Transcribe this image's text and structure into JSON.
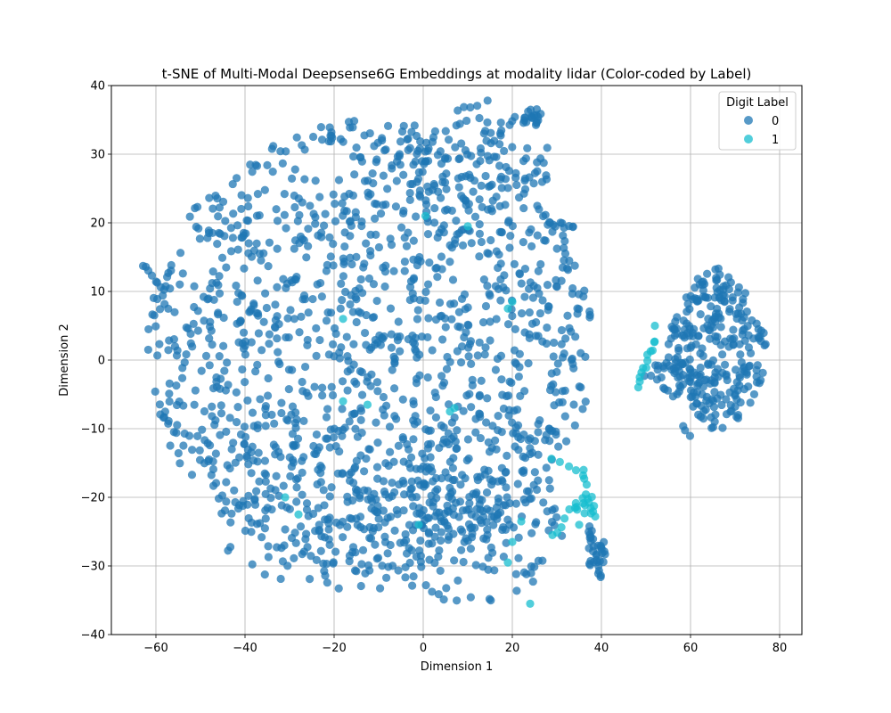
{
  "chart_data": {
    "type": "scatter",
    "title": "t-SNE of Multi-Modal Deepsense6G Embeddings at modality lidar (Color-coded by Label)",
    "xlabel": "Dimension 1",
    "ylabel": "Dimension 2",
    "xlim": [
      -70,
      85
    ],
    "ylim": [
      -40,
      40
    ],
    "xticks": [
      -60,
      -40,
      -20,
      0,
      20,
      40,
      60,
      80
    ],
    "yticks": [
      -40,
      -30,
      -20,
      -10,
      0,
      10,
      20,
      30,
      40
    ],
    "grid": true,
    "legend": {
      "title": "Digit Label",
      "placement": "top-right"
    },
    "series": [
      {
        "name": "0",
        "color": "#1f77b4",
        "clusters": [
          {
            "shape": "disc",
            "cx": -12,
            "cy": 2,
            "rx": 50,
            "ry": 33,
            "n": 1250
          },
          {
            "shape": "disc",
            "cx": -20,
            "cy": -22,
            "rx": 30,
            "ry": 12,
            "n": 130
          },
          {
            "shape": "disc",
            "cx": 10,
            "cy": -22,
            "rx": 22,
            "ry": 14,
            "n": 170
          },
          {
            "shape": "disc",
            "cx": 12,
            "cy": 28,
            "rx": 18,
            "ry": 10,
            "n": 110
          },
          {
            "shape": "disc",
            "cx": 66,
            "cy": 1,
            "rx": 11,
            "ry": 11,
            "n": 260
          },
          {
            "shape": "disc",
            "cx": 65,
            "cy": 11,
            "rx": 4,
            "ry": 2.5,
            "n": 20
          },
          {
            "shape": "disc",
            "cx": 55,
            "cy": -2,
            "rx": 4,
            "ry": 2.5,
            "n": 16
          },
          {
            "shape": "disc",
            "cx": 39,
            "cy": -28,
            "rx": 2,
            "ry": 4,
            "n": 22
          },
          {
            "shape": "disc",
            "cx": 24.5,
            "cy": 35.5,
            "rx": 2,
            "ry": 1.5,
            "n": 18
          }
        ],
        "segments": [
          {
            "from": [
              -63,
              14
            ],
            "to": [
              -58,
              10
            ],
            "n": 8
          },
          {
            "from": [
              28,
              20
            ],
            "to": [
              34,
              19.5
            ],
            "n": 10
          },
          {
            "from": [
              37,
              -24
            ],
            "to": [
              40,
              -32
            ],
            "n": 12
          },
          {
            "from": [
              58,
              -9.5
            ],
            "to": [
              60,
              -11
            ],
            "n": 3
          },
          {
            "from": [
              50,
              -2
            ],
            "to": [
              56,
              -5
            ],
            "n": 6
          }
        ]
      },
      {
        "name": "1",
        "color": "#17becf",
        "clusters": [
          {
            "shape": "disc",
            "cx": 36,
            "cy": -21.5,
            "rx": 2.2,
            "ry": 2.2,
            "n": 14
          }
        ],
        "segments": [
          {
            "from": [
              48,
              -4
            ],
            "to": [
              52,
              3
            ],
            "n": 12
          },
          {
            "from": [
              29,
              -14
            ],
            "to": [
              36,
              -17
            ],
            "n": 5
          },
          {
            "from": [
              30,
              -25
            ],
            "to": [
              33,
              -22
            ],
            "n": 4
          },
          {
            "from": [
              36,
              -17
            ],
            "to": [
              39,
              -23
            ],
            "n": 5
          }
        ],
        "points": [
          [
            0.5,
            21
          ],
          [
            10,
            19.5
          ],
          [
            20,
            8.5
          ],
          [
            19,
            7.5
          ],
          [
            -18,
            6
          ],
          [
            -12.5,
            -6.5
          ],
          [
            -18,
            -6
          ],
          [
            6,
            -7.5
          ],
          [
            7,
            -7
          ],
          [
            -31,
            -20
          ],
          [
            -28,
            -22.5
          ],
          [
            -1,
            -24
          ],
          [
            20,
            -26.5
          ],
          [
            22,
            -23.5
          ],
          [
            24,
            -35.5
          ],
          [
            29,
            -25.5
          ],
          [
            19,
            -29.5
          ],
          [
            36,
            -16
          ],
          [
            52,
            5
          ],
          [
            35,
            -24
          ]
        ]
      }
    ]
  }
}
